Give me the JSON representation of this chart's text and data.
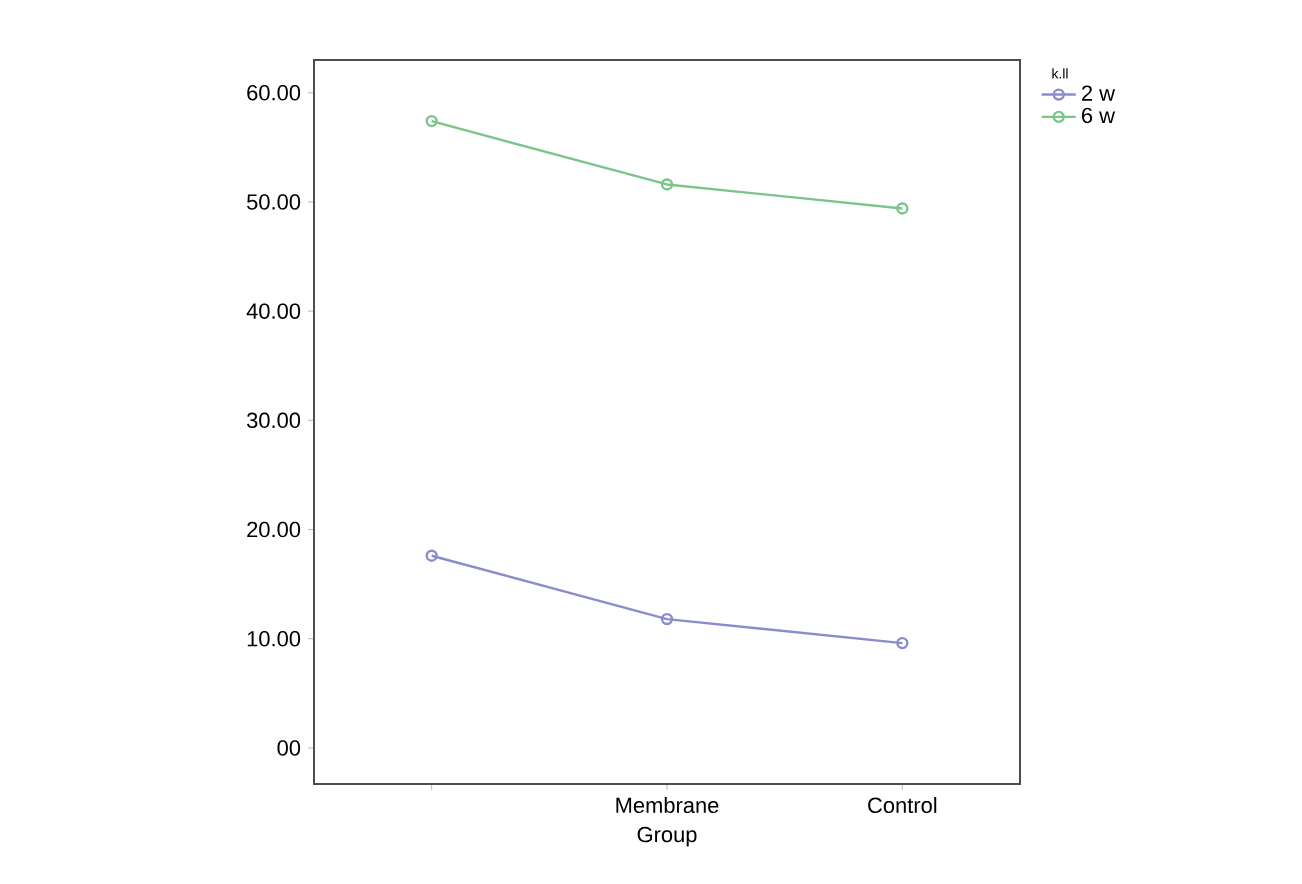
{
  "chart_data": {
    "type": "line",
    "xlabel": "Group",
    "legend_title": "k.ll",
    "categories": [
      null,
      "Membrane",
      "Control"
    ],
    "series": [
      {
        "name": "2 w",
        "color": "#8a8ccc",
        "values": [
          17.6,
          11.8,
          9.6
        ]
      },
      {
        "name": "6 w",
        "color": "#7cc48a",
        "values": [
          57.4,
          51.6,
          49.4
        ]
      }
    ],
    "ylim": [
      -3.3,
      63
    ],
    "yticks": [
      {
        "value": 0,
        "label": "00"
      },
      {
        "value": 10,
        "label": "10.00"
      },
      {
        "value": 20,
        "label": "20.00"
      },
      {
        "value": 30,
        "label": "30.00"
      },
      {
        "value": 40,
        "label": "40.00"
      },
      {
        "value": 50,
        "label": "50.00"
      },
      {
        "value": 60,
        "label": "60.00"
      }
    ],
    "marker": "circle",
    "line_style": "solid",
    "legend": "top right",
    "grid": false
  }
}
